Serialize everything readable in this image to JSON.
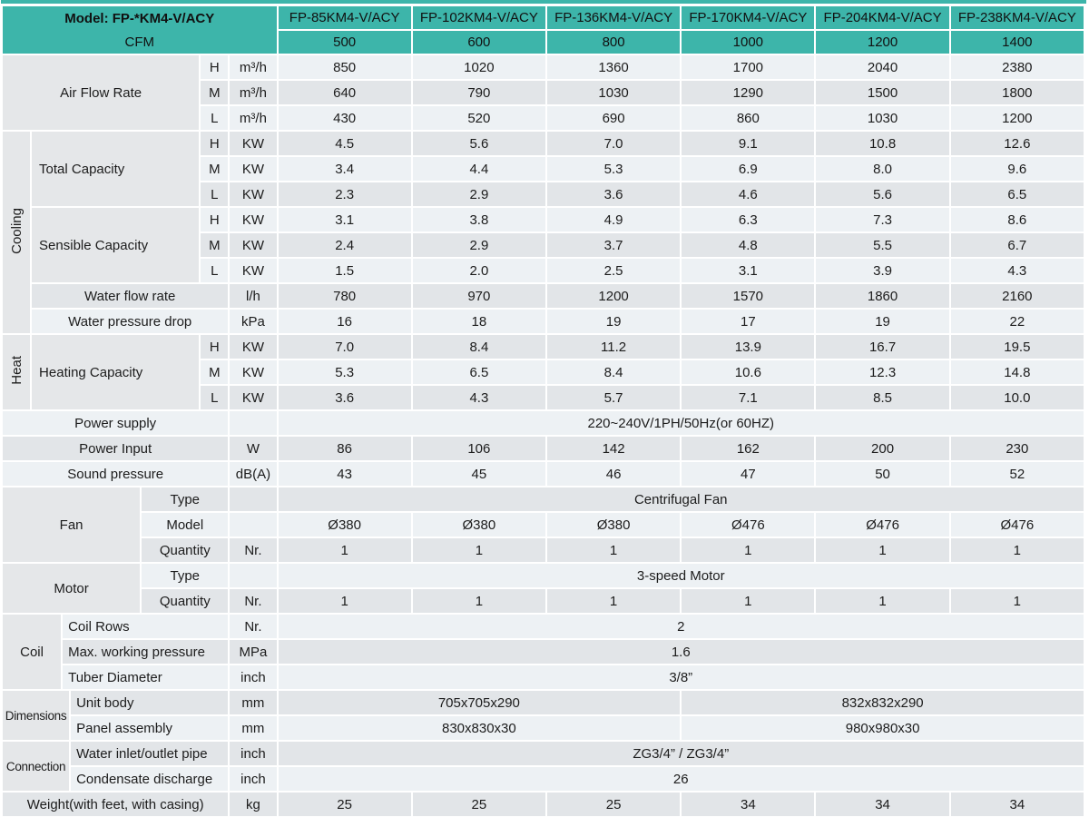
{
  "header": {
    "model_label": "Model: FP-*KM4-V/ACY",
    "cfm_label": "CFM",
    "models": [
      "FP-85KM4-V/ACY",
      "FP-102KM4-V/ACY",
      "FP-136KM4-V/ACY",
      "FP-170KM4-V/ACY",
      "FP-204KM4-V/ACY",
      "FP-238KM4-V/ACY"
    ],
    "cfm": [
      "500",
      "600",
      "800",
      "1000",
      "1200",
      "1400"
    ]
  },
  "speeds": [
    "H",
    "M",
    "L"
  ],
  "airflow": {
    "label": "Air Flow Rate",
    "unit": "m³/h",
    "H": [
      "850",
      "1020",
      "1360",
      "1700",
      "2040",
      "2380"
    ],
    "M": [
      "640",
      "790",
      "1030",
      "1290",
      "1500",
      "1800"
    ],
    "L": [
      "430",
      "520",
      "690",
      "860",
      "1030",
      "1200"
    ]
  },
  "cooling": {
    "group": "Cooling",
    "total": {
      "label": "Total Capacity",
      "unit": "KW",
      "H": [
        "4.5",
        "5.6",
        "7.0",
        "9.1",
        "10.8",
        "12.6"
      ],
      "M": [
        "3.4",
        "4.4",
        "5.3",
        "6.9",
        "8.0",
        "9.6"
      ],
      "L": [
        "2.3",
        "2.9",
        "3.6",
        "4.6",
        "5.6",
        "6.5"
      ]
    },
    "sensible": {
      "label": "Sensible Capacity",
      "unit": "KW",
      "H": [
        "3.1",
        "3.8",
        "4.9",
        "6.3",
        "7.3",
        "8.6"
      ],
      "M": [
        "2.4",
        "2.9",
        "3.7",
        "4.8",
        "5.5",
        "6.7"
      ],
      "L": [
        "1.5",
        "2.0",
        "2.5",
        "3.1",
        "3.9",
        "4.3"
      ]
    },
    "water_flow": {
      "label": "Water flow rate",
      "unit": "l/h",
      "values": [
        "780",
        "970",
        "1200",
        "1570",
        "1860",
        "2160"
      ]
    },
    "water_drop": {
      "label": "Water pressure drop",
      "unit": "kPa",
      "values": [
        "16",
        "18",
        "19",
        "17",
        "19",
        "22"
      ]
    }
  },
  "heat": {
    "group": "Heat",
    "heating": {
      "label": "Heating Capacity",
      "unit": "KW",
      "H": [
        "7.0",
        "8.4",
        "11.2",
        "13.9",
        "16.7",
        "19.5"
      ],
      "M": [
        "5.3",
        "6.5",
        "8.4",
        "10.6",
        "12.3",
        "14.8"
      ],
      "L": [
        "3.6",
        "4.3",
        "5.7",
        "7.1",
        "8.5",
        "10.0"
      ]
    }
  },
  "power_supply": {
    "label": "Power supply",
    "value": "220~240V/1PH/50Hz(or 60HZ)"
  },
  "power_input": {
    "label": "Power Input",
    "unit": "W",
    "values": [
      "86",
      "106",
      "142",
      "162",
      "200",
      "230"
    ]
  },
  "sound": {
    "label": "Sound pressure",
    "unit": "dB(A)",
    "values": [
      "43",
      "45",
      "46",
      "47",
      "50",
      "52"
    ]
  },
  "fan": {
    "group": "Fan",
    "type": {
      "label": "Type",
      "value": "Centrifugal Fan"
    },
    "model": {
      "label": "Model",
      "values": [
        "Ø380",
        "Ø380",
        "Ø380",
        "Ø476",
        "Ø476",
        "Ø476"
      ]
    },
    "quantity": {
      "label": "Quantity",
      "unit": "Nr.",
      "values": [
        "1",
        "1",
        "1",
        "1",
        "1",
        "1"
      ]
    }
  },
  "motor": {
    "group": "Motor",
    "type": {
      "label": "Type",
      "value": "3-speed Motor"
    },
    "quantity": {
      "label": "Quantity",
      "unit": "Nr.",
      "values": [
        "1",
        "1",
        "1",
        "1",
        "1",
        "1"
      ]
    }
  },
  "coil": {
    "group": "Coil",
    "rows": {
      "label": "Coil Rows",
      "unit": "Nr.",
      "value": "2"
    },
    "pressure": {
      "label": "Max. working pressure",
      "unit": "MPa",
      "value": "1.6"
    },
    "tube": {
      "label": "Tuber Diameter",
      "unit": "inch",
      "value": "3/8”"
    }
  },
  "dimensions": {
    "group": "Dimensions",
    "unit_body": {
      "label": "Unit body",
      "unit": "mm",
      "values": [
        "705x705x290",
        "832x832x290"
      ]
    },
    "panel": {
      "label": "Panel assembly",
      "unit": "mm",
      "values": [
        "830x830x30",
        "980x980x30"
      ]
    }
  },
  "connection": {
    "group": "Connection",
    "inlet": {
      "label": "Water inlet/outlet pipe",
      "unit": "inch",
      "value": "ZG3/4” / ZG3/4”"
    },
    "condensate": {
      "label": "Condensate discharge",
      "unit": "inch",
      "value": "26"
    }
  },
  "weight": {
    "label": "Weight(with feet, with casing)",
    "unit": "kg",
    "values": [
      "25",
      "25",
      "25",
      "34",
      "34",
      "34"
    ]
  },
  "colors": {
    "teal": "#3DB5AA",
    "row_light": "#EDF1F4",
    "row_dark": "#E2E5E8",
    "label_bg": "#E5E7E9"
  }
}
